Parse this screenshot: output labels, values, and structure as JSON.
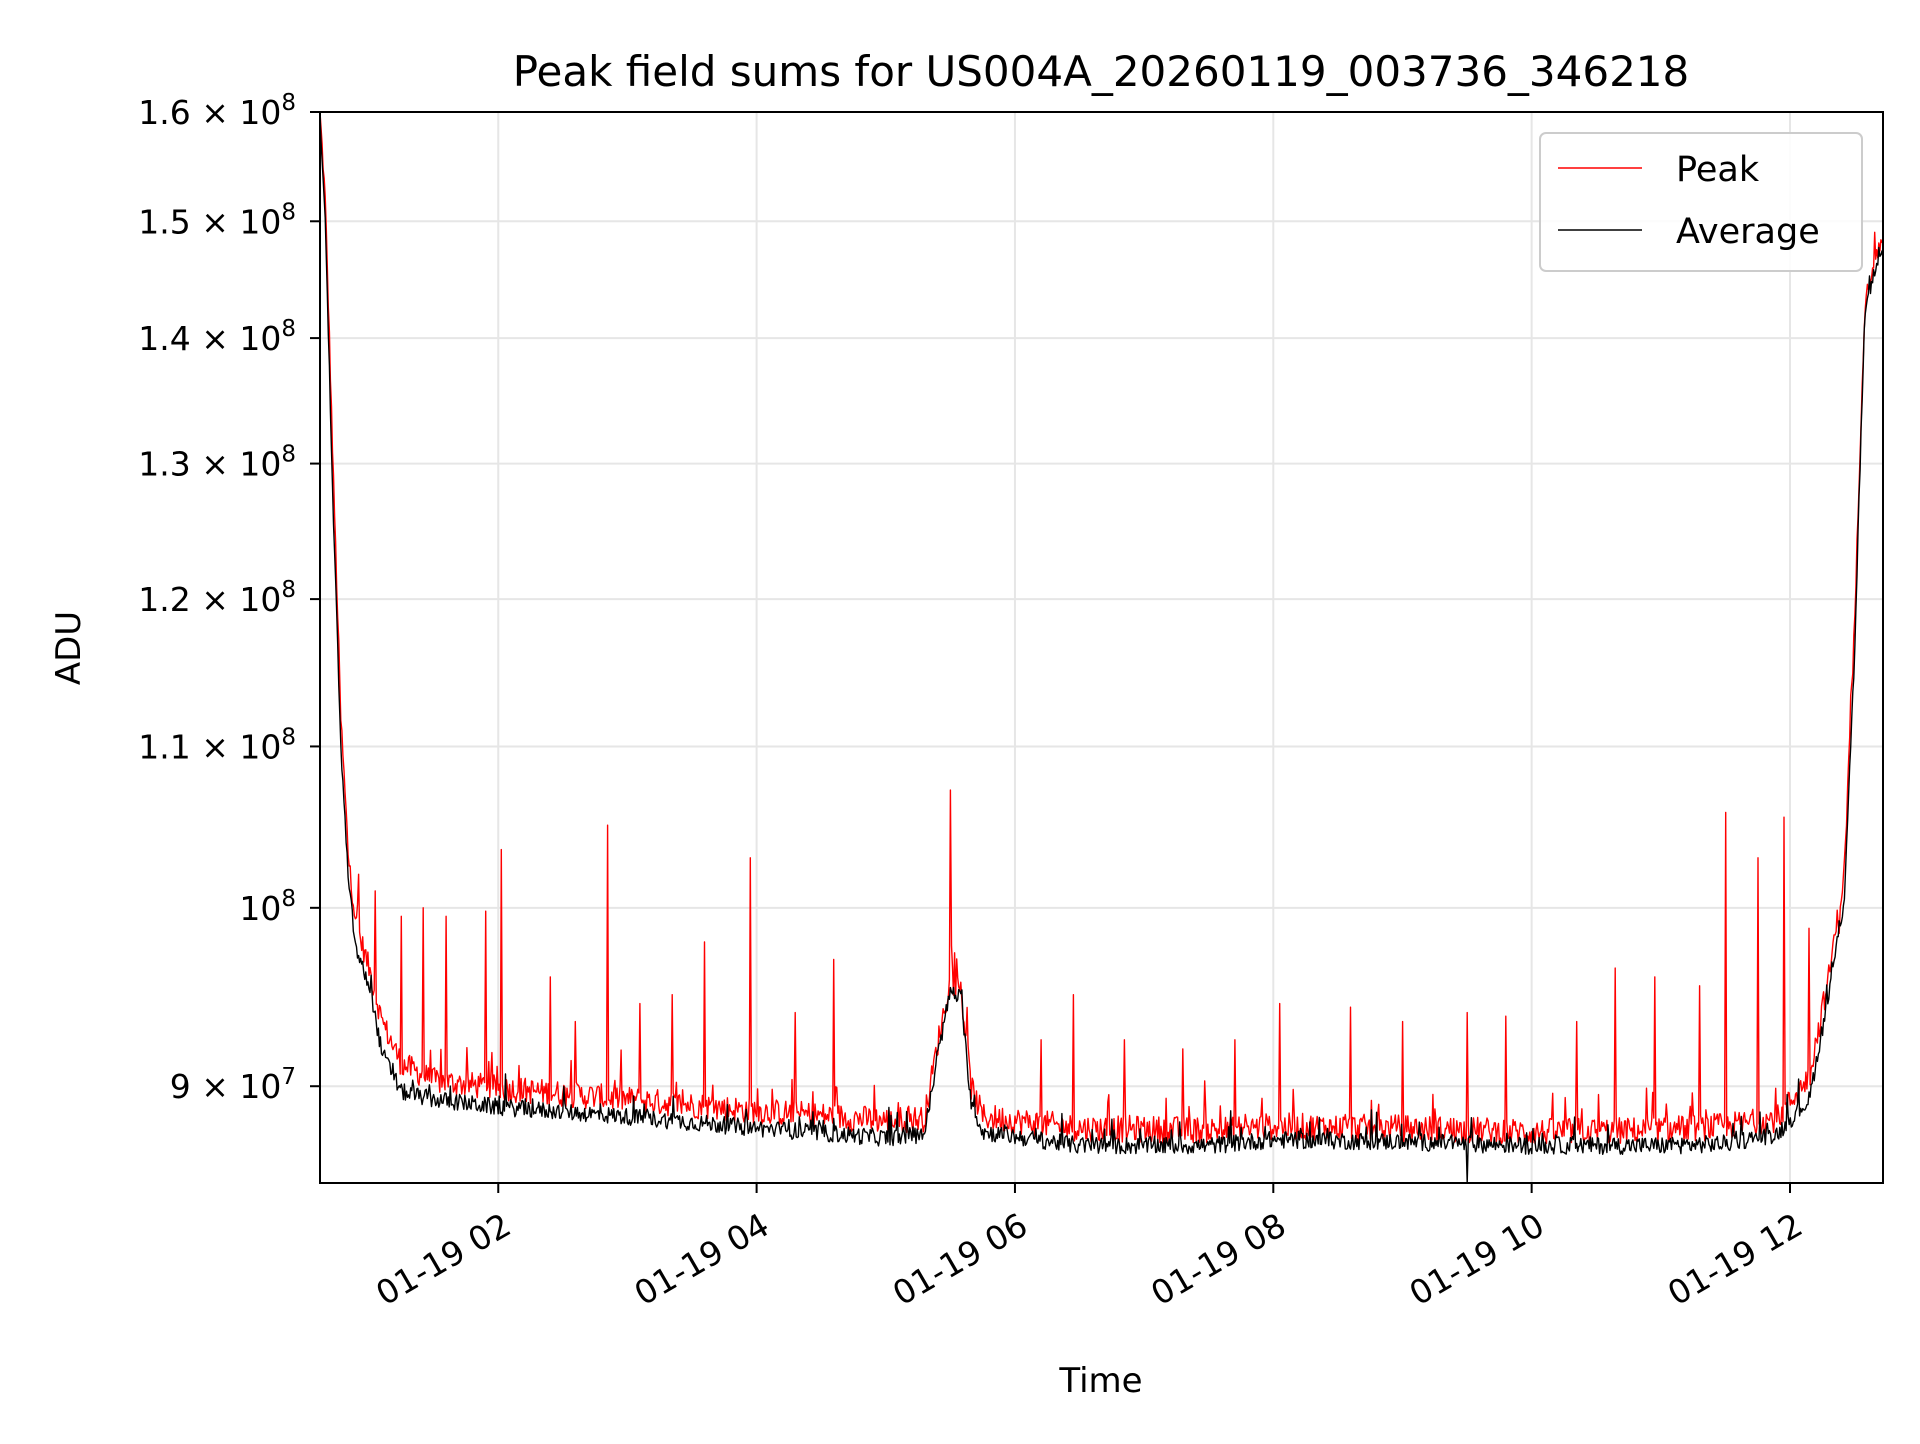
{
  "chart_data": {
    "type": "line",
    "title": "Peak field sums for US004A_20260119_003736_346218",
    "xlabel": "Time",
    "ylabel": "ADU",
    "yscale": "log",
    "ylim": [
      85000000,
      160000000
    ],
    "xlim_hours": [
      0.62,
      12.72
    ],
    "grid": true,
    "legend_position": "top-right",
    "colors": {
      "peak": "#ff0000",
      "average": "#000000",
      "grid": "#e6e6e6"
    },
    "x_ticks": [
      {
        "value": 2,
        "label": "01-19 02"
      },
      {
        "value": 4,
        "label": "01-19 04"
      },
      {
        "value": 6,
        "label": "01-19 06"
      },
      {
        "value": 8,
        "label": "01-19 08"
      },
      {
        "value": 10,
        "label": "01-19 10"
      },
      {
        "value": 12,
        "label": "01-19 12"
      }
    ],
    "y_ticks": [
      {
        "value": 90000000,
        "mantissa": "9",
        "times": "×",
        "base": "10",
        "exp": "7"
      },
      {
        "value": 100000000,
        "mantissa": "",
        "times": "",
        "base": "10",
        "exp": "8"
      },
      {
        "value": 110000000,
        "mantissa": "1.1",
        "times": "×",
        "base": "10",
        "exp": "8"
      },
      {
        "value": 120000000,
        "mantissa": "1.2",
        "times": "×",
        "base": "10",
        "exp": "8"
      },
      {
        "value": 130000000,
        "mantissa": "1.3",
        "times": "×",
        "base": "10",
        "exp": "8"
      },
      {
        "value": 140000000,
        "mantissa": "1.4",
        "times": "×",
        "base": "10",
        "exp": "8"
      },
      {
        "value": 150000000,
        "mantissa": "1.5",
        "times": "×",
        "base": "10",
        "exp": "8"
      },
      {
        "value": 160000000,
        "mantissa": "1.6",
        "times": "×",
        "base": "10",
        "exp": "8"
      }
    ],
    "series": [
      {
        "name": "Peak",
        "baseline": [
          [
            0.62,
            160000000
          ],
          [
            0.66,
            152000000
          ],
          [
            0.72,
            130000000
          ],
          [
            0.78,
            112000000
          ],
          [
            0.84,
            103000000
          ],
          [
            0.9,
            99000000
          ],
          [
            1.0,
            96500000
          ],
          [
            1.1,
            93500000
          ],
          [
            1.25,
            91200000
          ],
          [
            1.5,
            90300000
          ],
          [
            2.0,
            89900000
          ],
          [
            3.0,
            89300000
          ],
          [
            4.0,
            88700000
          ],
          [
            5.0,
            88200000
          ],
          [
            5.3,
            88300000
          ],
          [
            5.42,
            93000000
          ],
          [
            5.5,
            95800000
          ],
          [
            5.58,
            95300000
          ],
          [
            5.66,
            90000000
          ],
          [
            5.75,
            88400000
          ],
          [
            6.5,
            87800000
          ],
          [
            7.5,
            87700000
          ],
          [
            8.0,
            87900000
          ],
          [
            9.0,
            87800000
          ],
          [
            10.0,
            87600000
          ],
          [
            11.0,
            87700000
          ],
          [
            11.5,
            87900000
          ],
          [
            11.9,
            88300000
          ],
          [
            12.15,
            90500000
          ],
          [
            12.3,
            96000000
          ],
          [
            12.42,
            102000000
          ],
          [
            12.5,
            118000000
          ],
          [
            12.58,
            143000000
          ],
          [
            12.65,
            146500000
          ],
          [
            12.72,
            148500000
          ]
        ],
        "spikes": [
          [
            0.92,
            102000000
          ],
          [
            1.05,
            101000000
          ],
          [
            1.25,
            99500000
          ],
          [
            1.42,
            100000000
          ],
          [
            1.6,
            99500000
          ],
          [
            1.9,
            99800000
          ],
          [
            2.02,
            103500000
          ],
          [
            2.4,
            96000000
          ],
          [
            2.6,
            93500000
          ],
          [
            2.85,
            105000000
          ],
          [
            3.1,
            94500000
          ],
          [
            3.35,
            95000000
          ],
          [
            3.6,
            98000000
          ],
          [
            3.95,
            103000000
          ],
          [
            4.3,
            94000000
          ],
          [
            4.6,
            97000000
          ],
          [
            5.5,
            107200000
          ],
          [
            6.2,
            92500000
          ],
          [
            6.45,
            95000000
          ],
          [
            6.85,
            92500000
          ],
          [
            7.3,
            92000000
          ],
          [
            7.7,
            92500000
          ],
          [
            8.05,
            94500000
          ],
          [
            8.6,
            94300000
          ],
          [
            9.0,
            93500000
          ],
          [
            9.5,
            94000000
          ],
          [
            9.8,
            93800000
          ],
          [
            10.35,
            93500000
          ],
          [
            10.65,
            96500000
          ],
          [
            10.95,
            96000000
          ],
          [
            11.3,
            95500000
          ],
          [
            11.5,
            105800000
          ],
          [
            11.75,
            103000000
          ],
          [
            11.95,
            105500000
          ],
          [
            12.15,
            98800000
          ],
          [
            12.38,
            98500000
          ]
        ],
        "noise": 700000
      },
      {
        "name": "Average",
        "baseline": [
          [
            0.62,
            159500000
          ],
          [
            0.66,
            150000000
          ],
          [
            0.72,
            127000000
          ],
          [
            0.78,
            110000000
          ],
          [
            0.84,
            101500000
          ],
          [
            0.9,
            97500000
          ],
          [
            1.0,
            95500000
          ],
          [
            1.1,
            91800000
          ],
          [
            1.25,
            89700000
          ],
          [
            1.5,
            89300000
          ],
          [
            2.0,
            88900000
          ],
          [
            3.0,
            88400000
          ],
          [
            4.0,
            87800000
          ],
          [
            5.0,
            87300000
          ],
          [
            5.3,
            87500000
          ],
          [
            5.42,
            92300000
          ],
          [
            5.5,
            95200000
          ],
          [
            5.58,
            94800000
          ],
          [
            5.66,
            89200000
          ],
          [
            5.75,
            87600000
          ],
          [
            6.5,
            86900000
          ],
          [
            7.5,
            86900000
          ],
          [
            8.0,
            87200000
          ],
          [
            9.0,
            87100000
          ],
          [
            10.0,
            86900000
          ],
          [
            11.0,
            86900000
          ],
          [
            11.5,
            87000000
          ],
          [
            11.9,
            87500000
          ],
          [
            12.15,
            89300000
          ],
          [
            12.3,
            95000000
          ],
          [
            12.42,
            100500000
          ],
          [
            12.5,
            116000000
          ],
          [
            12.58,
            142000000
          ],
          [
            12.65,
            145500000
          ],
          [
            12.72,
            147200000
          ]
        ],
        "spikes": [
          [
            9.5,
            85000000
          ]
        ],
        "noise": 450000
      }
    ]
  }
}
